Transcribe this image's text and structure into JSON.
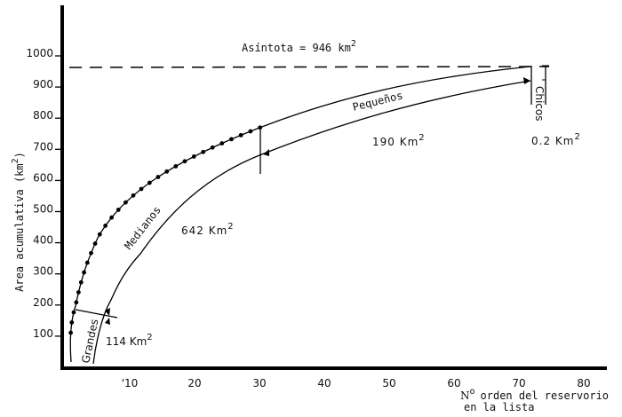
{
  "chart_data": {
    "type": "line",
    "title": "",
    "xlabel": "Nº orden del reservorio en la lista",
    "xlabel_line1": "orden del reservorio",
    "xlabel_line2": "en la lista",
    "xlabel_prefix": "N",
    "xlabel_prefix_sup": "o",
    "ylabel": "Area acumulativa (km²)",
    "ylabel_text": "Area acumulativa (km",
    "ylabel_sup": "2",
    "ylabel_close": ")",
    "xlim": [
      0,
      85
    ],
    "ylim": [
      0,
      1100
    ],
    "x_ticks": [
      10,
      20,
      30,
      40,
      50,
      60,
      70,
      80
    ],
    "x_tick_labels": [
      "'10",
      "20",
      "30",
      "40",
      "50",
      "60",
      "70",
      "80"
    ],
    "y_ticks": [
      100,
      200,
      300,
      400,
      500,
      600,
      700,
      800,
      900,
      1000
    ],
    "y_tick_labels": [
      "100",
      "200",
      "300",
      "400",
      "500",
      "600",
      "700",
      "800",
      "900",
      "1000"
    ],
    "grid": false,
    "asymptote": {
      "value": 946,
      "label": "Asíntota = 946 km",
      "label_sup": "2",
      "style": "dashed"
    },
    "series": [
      {
        "name": "Area acumulativa",
        "markers": true,
        "points": [
          [
            1,
            115
          ],
          [
            2,
            187
          ],
          [
            3,
            255
          ],
          [
            4,
            325
          ],
          [
            5,
            365
          ],
          [
            6,
            400
          ],
          [
            7,
            432
          ],
          [
            8,
            462
          ],
          [
            9,
            485
          ],
          [
            10,
            510
          ],
          [
            11,
            530
          ],
          [
            12,
            550
          ],
          [
            13,
            568
          ],
          [
            14,
            585
          ],
          [
            15,
            600
          ],
          [
            16,
            616
          ],
          [
            17,
            630
          ],
          [
            18,
            645
          ],
          [
            19,
            658
          ],
          [
            20,
            670
          ],
          [
            21,
            683
          ],
          [
            22,
            695
          ],
          [
            23,
            705
          ],
          [
            24,
            715
          ],
          [
            25,
            724
          ],
          [
            26,
            733
          ],
          [
            27,
            742
          ],
          [
            28,
            750
          ],
          [
            29,
            757
          ],
          [
            30,
            764
          ]
        ],
        "continuation": [
          [
            30,
            764
          ],
          [
            40,
            820
          ],
          [
            50,
            870
          ],
          [
            60,
            910
          ],
          [
            70,
            940
          ],
          [
            72,
            946
          ]
        ]
      }
    ],
    "segments": [
      {
        "name": "Grandes",
        "area_label": "114 Km",
        "area_sup": "2",
        "area_km2": 114,
        "range": [
          0,
          2
        ]
      },
      {
        "name": "Medianos",
        "area_label": "642 Km",
        "area_sup": "2",
        "area_km2": 642,
        "range": [
          2,
          30
        ]
      },
      {
        "name": "Pequeños",
        "area_label": "190 Km",
        "area_sup": "2",
        "area_km2": 190,
        "range": [
          30,
          72
        ]
      },
      {
        "name": "Chicos",
        "area_label": "0.2 Km",
        "area_sup": "2",
        "area_km2": 0.2,
        "range": [
          72,
          75
        ]
      }
    ]
  }
}
